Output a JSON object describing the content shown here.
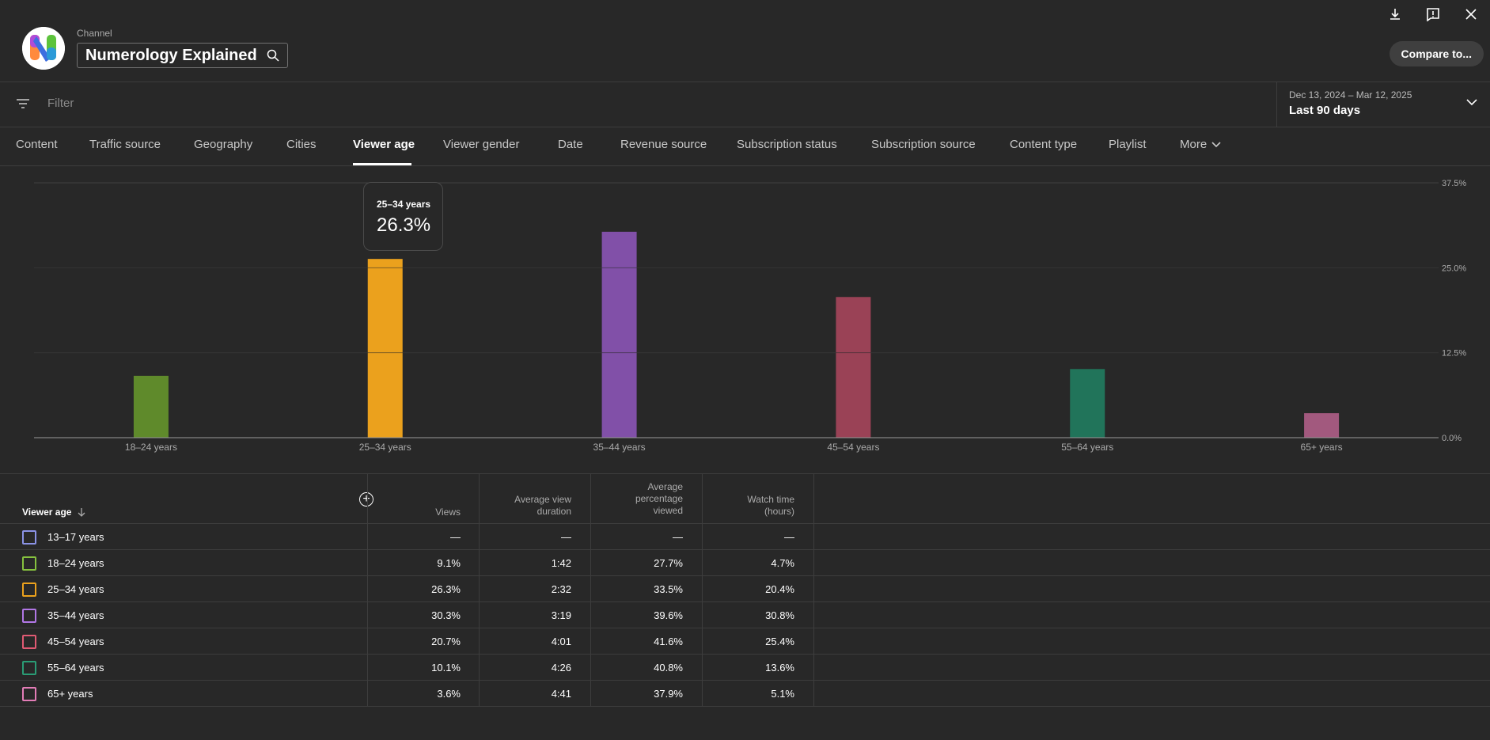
{
  "header": {
    "channel_label": "Channel",
    "channel_name": "Numerology Explained",
    "compare_label": "Compare to...",
    "icons": [
      "download-icon",
      "feedback-icon",
      "close-icon"
    ]
  },
  "filter": {
    "placeholder": "Filter",
    "date_range": "Dec 13, 2024 – Mar 12, 2025",
    "date_label": "Last 90 days"
  },
  "tabs": [
    {
      "label": "Content"
    },
    {
      "label": "Traffic source"
    },
    {
      "label": "Geography"
    },
    {
      "label": "Cities"
    },
    {
      "label": "Viewer age",
      "active": true
    },
    {
      "label": "Viewer gender"
    },
    {
      "label": "Date"
    },
    {
      "label": "Revenue source"
    },
    {
      "label": "Subscription status"
    },
    {
      "label": "Subscription source"
    },
    {
      "label": "Content type"
    },
    {
      "label": "Playlist"
    },
    {
      "label": "More"
    }
  ],
  "tooltip": {
    "category": "25–34 years",
    "value": "26.3%"
  },
  "chart_data": {
    "type": "bar",
    "categories": [
      "18–24 years",
      "25–34 years",
      "35–44 years",
      "45–54 years",
      "55–64 years",
      "65+ years"
    ],
    "values": [
      9.1,
      26.3,
      30.3,
      20.7,
      10.1,
      3.6
    ],
    "colors": [
      "#5f8a2b",
      "#eba11d",
      "#8150a8",
      "#9a4256",
      "#21745a",
      "#a2597e"
    ],
    "ylim": [
      0,
      37.5
    ],
    "yticks": [
      "0.0%",
      "12.5%",
      "25.0%",
      "37.5%"
    ],
    "grid": true
  },
  "table": {
    "columns": {
      "age": "Viewer age",
      "views": "Views",
      "avg_duration": [
        "Average view",
        "duration"
      ],
      "avg_pct": [
        "Average",
        "percentage",
        "viewed"
      ],
      "watch_time": [
        "Watch time",
        "(hours)"
      ]
    },
    "rows": [
      {
        "age": "13–17 years",
        "views": "—",
        "duration": "—",
        "pct": "—",
        "watch": "—",
        "color": "#8b93e6"
      },
      {
        "age": "18–24 years",
        "views": "9.1%",
        "duration": "1:42",
        "pct": "27.7%",
        "watch": "4.7%",
        "color": "#86c13f"
      },
      {
        "age": "25–34 years",
        "views": "26.3%",
        "duration": "2:32",
        "pct": "33.5%",
        "watch": "20.4%",
        "color": "#eba11d"
      },
      {
        "age": "35–44 years",
        "views": "30.3%",
        "duration": "3:19",
        "pct": "39.6%",
        "watch": "30.8%",
        "color": "#b177e6"
      },
      {
        "age": "45–54 years",
        "views": "20.7%",
        "duration": "4:01",
        "pct": "41.6%",
        "watch": "25.4%",
        "color": "#e05a73"
      },
      {
        "age": "55–64 years",
        "views": "10.1%",
        "duration": "4:26",
        "pct": "40.8%",
        "watch": "13.6%",
        "color": "#2a9c75"
      },
      {
        "age": "65+ years",
        "views": "3.6%",
        "duration": "4:41",
        "pct": "37.9%",
        "watch": "5.1%",
        "color": "#e37db7"
      }
    ]
  }
}
